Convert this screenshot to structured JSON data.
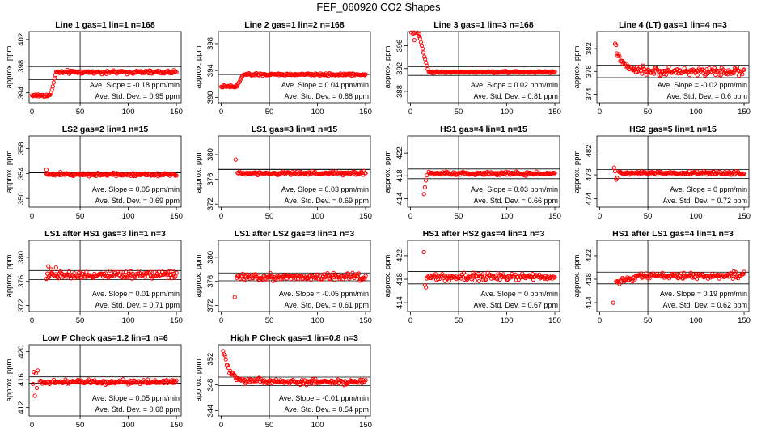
{
  "page": {
    "title": "FEF_060920  CO2 Shapes",
    "colors": {
      "points": "#ff0000",
      "axes": "#000000",
      "background": "#ffffff"
    }
  },
  "chart_data": [
    {
      "type": "scatter",
      "title": "Line 1 gas=1 lin=1 n=168",
      "ylabel": "approx. ppm",
      "xlim": [
        -3,
        155
      ],
      "ylim": [
        392.5,
        403.2
      ],
      "xticks": [
        0,
        50,
        100,
        150
      ],
      "yticks": [
        394,
        398,
        402
      ],
      "hlines": [
        397.95,
        395.95
      ],
      "vline": 50,
      "slope": "Ave. Slope = -0.18  ppm/min",
      "stddev": "Ave. Std. Dev. = 0.95  ppm",
      "shape": {
        "kind": "ramp",
        "x0": 0,
        "x1": 150,
        "n": 168,
        "start": 393.6,
        "end": 397.1,
        "tStart": 19,
        "tEnd": 25,
        "noise": 0.18
      }
    },
    {
      "type": "scatter",
      "title": "Line 2 gas=1 lin=2 n=168",
      "ylabel": "approx. ppm",
      "xlim": [
        -3,
        155
      ],
      "ylim": [
        389.2,
        399.8
      ],
      "xticks": [
        0,
        50,
        100,
        150
      ],
      "yticks": [
        390,
        394,
        398
      ],
      "hlines": [
        393.4,
        393.4
      ],
      "vline": 50,
      "slope": "Ave. Slope = 0.04  ppm/min",
      "stddev": "Ave. Std. Dev. = 0.88  ppm",
      "shape": {
        "kind": "ramp",
        "x0": 0,
        "x1": 150,
        "n": 168,
        "start": 391.6,
        "end": 393.4,
        "tStart": 16,
        "tEnd": 23,
        "noise": 0.12
      }
    },
    {
      "type": "scatter",
      "title": "Line 3 gas=1 lin=3 n=168",
      "ylabel": "approx. ppm",
      "xlim": [
        -3,
        155
      ],
      "ylim": [
        386.0,
        398.5
      ],
      "xticks": [
        0,
        50,
        100,
        150
      ],
      "yticks": [
        388,
        392,
        396
      ],
      "hlines": [
        392.3,
        390.8
      ],
      "vline": 50,
      "slope": "Ave. Slope = 0.02  ppm/min",
      "stddev": "Ave. Std. Dev. = 0.81  ppm",
      "shape": {
        "kind": "ramp",
        "x0": 0,
        "x1": 150,
        "n": 168,
        "start": 398.3,
        "end": 391.4,
        "tStart": 8,
        "tEnd": 19,
        "noise": 0.12,
        "extra": [
          [
            4,
            397.0
          ],
          [
            6,
            398.4
          ],
          [
            9,
            398.1
          ]
        ]
      }
    },
    {
      "type": "scatter",
      "title": "Line 4 (LT) gas=1 lin=4 n=3",
      "ylabel": "approx. ppm",
      "xlim": [
        -3,
        155
      ],
      "ylim": [
        372.5,
        385.0
      ],
      "xticks": [
        0,
        50,
        100,
        150
      ],
      "yticks": [
        374,
        378,
        382
      ],
      "hlines": [
        379.1,
        376.9
      ],
      "vline": 50,
      "slope": "Ave. Slope = -0.02  ppm/min",
      "stddev": "Ave. Std. Dev. = 0.6  ppm",
      "shape": {
        "kind": "decay",
        "x0": 16,
        "x1": 150,
        "n": 150,
        "start": 382.6,
        "end": 378.0,
        "tau": 7,
        "noise": 0.45
      }
    },
    {
      "type": "scatter",
      "title": "LS2 gas=2 lin=1 n=15",
      "ylabel": "approx. ppm",
      "xlim": [
        -3,
        155
      ],
      "ylim": [
        348.6,
        360.0
      ],
      "xticks": [
        0,
        50,
        100,
        150
      ],
      "yticks": [
        350,
        354,
        358
      ],
      "hlines": [
        354.1,
        354.1
      ],
      "vline": 50,
      "slope": "Ave. Slope = 0.05  ppm/min",
      "stddev": "Ave. Std. Dev. = 0.69  ppm",
      "shape": {
        "kind": "flat",
        "x0": 15,
        "x1": 150,
        "n": 150,
        "level": 353.85,
        "noise": 0.18,
        "extra": [
          [
            15,
            354.6
          ]
        ]
      }
    },
    {
      "type": "scatter",
      "title": "LS1 gas=3 lin=1 n=15",
      "ylabel": "approx. ppm",
      "xlim": [
        -3,
        155
      ],
      "ylim": [
        371.5,
        383.0
      ],
      "xticks": [
        0,
        50,
        100,
        150
      ],
      "yticks": [
        372,
        376,
        380
      ],
      "hlines": [
        377.6,
        377.6
      ],
      "vline": 50,
      "slope": "Ave. Slope = 0.03  ppm/min",
      "stddev": "Ave. Std. Dev. = 0.69  ppm",
      "shape": {
        "kind": "flat",
        "x0": 17,
        "x1": 150,
        "n": 148,
        "level": 377.0,
        "noise": 0.2,
        "extra": [
          [
            15,
            379.2
          ]
        ]
      }
    },
    {
      "type": "scatter",
      "title": "HS1 gas=4 lin=1 n=15",
      "ylabel": "approx. ppm",
      "xlim": [
        -3,
        155
      ],
      "ylim": [
        412.5,
        425.0
      ],
      "xticks": [
        0,
        50,
        100,
        150
      ],
      "yticks": [
        414,
        418,
        422
      ],
      "hlines": [
        419.2,
        417.5
      ],
      "vline": 50,
      "slope": "Ave. Slope = 0.03  ppm/min",
      "stddev": "Ave. Std. Dev. = 0.66  ppm",
      "shape": {
        "kind": "flat",
        "x0": 19,
        "x1": 150,
        "n": 145,
        "level": 418.4,
        "noise": 0.22,
        "extra": [
          [
            14,
            414.8
          ],
          [
            15,
            416.0
          ],
          [
            16,
            417.2
          ],
          [
            17,
            418.1
          ]
        ]
      }
    },
    {
      "type": "scatter",
      "title": "HS2 gas=5 lin=1 n=15",
      "ylabel": "approx. ppm",
      "xlim": [
        -3,
        155
      ],
      "ylim": [
        472.6,
        484.5
      ],
      "xticks": [
        0,
        50,
        100,
        150
      ],
      "yticks": [
        474,
        478,
        482
      ],
      "hlines": [
        478.9,
        477.4
      ],
      "vline": 50,
      "slope": "Ave. Slope = 0  ppm/min",
      "stddev": "Ave. Std. Dev. = 0.72  ppm",
      "shape": {
        "kind": "flat",
        "x0": 20,
        "x1": 150,
        "n": 145,
        "level": 478.3,
        "noise": 0.2,
        "extra": [
          [
            15,
            479.2
          ],
          [
            16,
            478.6
          ],
          [
            17,
            477.2
          ],
          [
            18,
            477.5
          ]
        ]
      }
    },
    {
      "type": "scatter",
      "title": "LS1 after HS1 gas=3 lin=1 n=3",
      "ylabel": "approx. ppm",
      "xlim": [
        -3,
        155
      ],
      "ylim": [
        371.0,
        382.8
      ],
      "xticks": [
        0,
        50,
        100,
        150
      ],
      "yticks": [
        372,
        376,
        380
      ],
      "hlines": [
        377.8,
        376.3
      ],
      "vline": 50,
      "slope": "Ave. Slope = 0.01  ppm/min",
      "stddev": "Ave. Std. Dev. = 0.71  ppm",
      "shape": {
        "kind": "flat",
        "x0": 15,
        "x1": 150,
        "n": 150,
        "level": 377.1,
        "noise": 0.45,
        "extra": [
          [
            17,
            378.5
          ],
          [
            20,
            378.0
          ],
          [
            25,
            378.3
          ]
        ]
      }
    },
    {
      "type": "scatter",
      "title": "LS1 after LS2 gas=3 lin=1 n=3",
      "ylabel": "approx. ppm",
      "xlim": [
        -3,
        155
      ],
      "ylim": [
        371.0,
        382.8
      ],
      "xticks": [
        0,
        50,
        100,
        150
      ],
      "yticks": [
        372,
        376,
        380
      ],
      "hlines": [
        377.4,
        376.1
      ],
      "vline": 50,
      "slope": "Ave. Slope = -0.05  ppm/min",
      "stddev": "Ave. Std. Dev. = 0.61  ppm",
      "shape": {
        "kind": "flat",
        "x0": 16,
        "x1": 150,
        "n": 150,
        "level": 376.8,
        "noise": 0.42,
        "extra": [
          [
            14,
            373.4
          ]
        ]
      }
    },
    {
      "type": "scatter",
      "title": "HS1 after HS2 gas=4 lin=1 n=3",
      "ylabel": "approx. ppm",
      "xlim": [
        -3,
        155
      ],
      "ylim": [
        412.5,
        424.6
      ],
      "xticks": [
        0,
        50,
        100,
        150
      ],
      "yticks": [
        414,
        418,
        422
      ],
      "hlines": [
        419.3,
        417.2
      ],
      "vline": 50,
      "slope": "Ave. Slope = 0  ppm/min",
      "stddev": "Ave. Std. Dev. = 0.67  ppm",
      "shape": {
        "kind": "flat",
        "x0": 17,
        "x1": 150,
        "n": 150,
        "level": 418.4,
        "noise": 0.42,
        "extra": [
          [
            14,
            422.6
          ],
          [
            15,
            417.0
          ],
          [
            16,
            416.6
          ]
        ]
      }
    },
    {
      "type": "scatter",
      "title": "HS1 after LS1 gas=4 lin=1 n=3",
      "ylabel": "approx. ppm",
      "xlim": [
        -3,
        155
      ],
      "ylim": [
        412.5,
        424.6
      ],
      "xticks": [
        0,
        50,
        100,
        150
      ],
      "yticks": [
        414,
        418,
        422
      ],
      "hlines": [
        419.2,
        417.2
      ],
      "vline": 50,
      "slope": "Ave. Slope = 0.19  ppm/min",
      "stddev": "Ave. Std. Dev. = 0.62  ppm",
      "shape": {
        "kind": "ramp",
        "x0": 17,
        "x1": 150,
        "n": 150,
        "start": 417.5,
        "end": 418.6,
        "tStart": 17,
        "tEnd": 45,
        "noise": 0.38,
        "extra": [
          [
            14,
            414.0
          ]
        ]
      }
    },
    {
      "type": "scatter",
      "title": "Low P Check gas=1.2 lin=1 n=6",
      "ylabel": "approx. ppm",
      "xlim": [
        -3,
        155
      ],
      "ylim": [
        410.8,
        421.0
      ],
      "xticks": [
        0,
        50,
        100,
        150
      ],
      "yticks": [
        412,
        416,
        420
      ],
      "hlines": [
        416.4,
        415.5
      ],
      "vline": 50,
      "slope": "Ave. Slope = 0.05  ppm/min",
      "stddev": "Ave. Std. Dev. = 0.68  ppm",
      "shape": {
        "kind": "flat",
        "x0": 8,
        "x1": 150,
        "n": 155,
        "level": 415.65,
        "noise": 0.22,
        "extra": [
          [
            1,
            415.4
          ],
          [
            2,
            417.1
          ],
          [
            3,
            413.7
          ],
          [
            4,
            416.9
          ],
          [
            5,
            414.8
          ],
          [
            6,
            417.3
          ]
        ]
      }
    },
    {
      "type": "scatter",
      "title": "High P Check gas=1 lin=0.8 n=3",
      "ylabel": "approx. ppm",
      "xlim": [
        -3,
        155
      ],
      "ylim": [
        343.2,
        354.2
      ],
      "xticks": [
        0,
        50,
        100,
        150
      ],
      "yticks": [
        344,
        348,
        352
      ],
      "hlines": [
        349.2,
        347.9
      ],
      "vline": 50,
      "slope": "Ave. Slope = -0.01  ppm/min",
      "stddev": "Ave. Std. Dev. = 0.54  ppm",
      "shape": {
        "kind": "decay",
        "x0": 2,
        "x1": 150,
        "n": 160,
        "start": 353.6,
        "end": 348.5,
        "tau": 6,
        "noise": 0.3
      }
    }
  ]
}
